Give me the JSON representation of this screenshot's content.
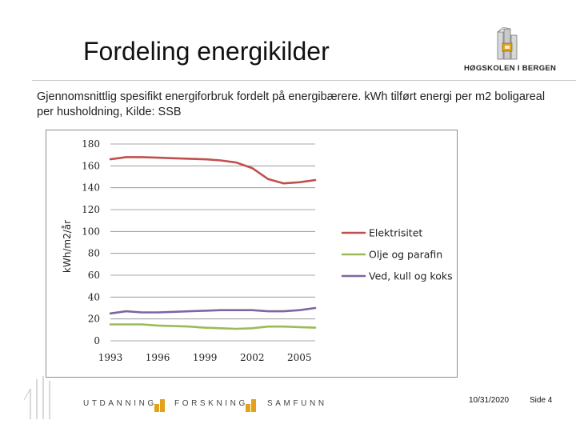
{
  "slide": {
    "title": "Fordeling energikilder",
    "subtitle": "Gjennomsnittlig spesifikt energiforbruk fordelt på energibærere. kWh tilført energi per m2 boligareal per husholdning, Kilde: SSB",
    "logo_text": "HØGSKOLEN I BERGEN",
    "footer": {
      "words": [
        "UTDANNING",
        "FORSKNING",
        "SAMFUNN"
      ],
      "date": "10/31/2020",
      "page": "Side 4"
    }
  },
  "colors": {
    "elektrisitet": "#c0504d",
    "olje": "#9bbb59",
    "ved": "#8064a2",
    "accent_gold": "#e3a21a"
  },
  "chart_data": {
    "type": "line",
    "title": "",
    "xlabel": "",
    "ylabel": "kWh/m2/år",
    "ylim": [
      0,
      180
    ],
    "yticks": [
      0,
      20,
      40,
      60,
      80,
      100,
      120,
      140,
      160,
      180
    ],
    "xlim": [
      1993,
      2006
    ],
    "xticks": [
      1993,
      1996,
      1999,
      2002,
      2005
    ],
    "x": [
      1993,
      1994,
      1995,
      1996,
      1997,
      1998,
      1999,
      2000,
      2001,
      2002,
      2003,
      2004,
      2005,
      2006
    ],
    "grid": true,
    "legend_position": "right",
    "series": [
      {
        "name": "Elektrisitet",
        "color": "#c0504d",
        "values": [
          166,
          168,
          168,
          167.5,
          167,
          166.5,
          166,
          165,
          163,
          158,
          148,
          144,
          145,
          147
        ]
      },
      {
        "name": "Olje og parafin",
        "color": "#9bbb59",
        "values": [
          15,
          15,
          15,
          14,
          13.5,
          13,
          12,
          11.5,
          11,
          11.5,
          13,
          13,
          12.5,
          12
        ]
      },
      {
        "name": "Ved, kull og koks",
        "color": "#8064a2",
        "values": [
          25,
          27,
          26,
          26,
          26.5,
          27,
          27.5,
          28,
          28,
          28,
          27,
          27,
          28,
          30
        ]
      }
    ]
  }
}
